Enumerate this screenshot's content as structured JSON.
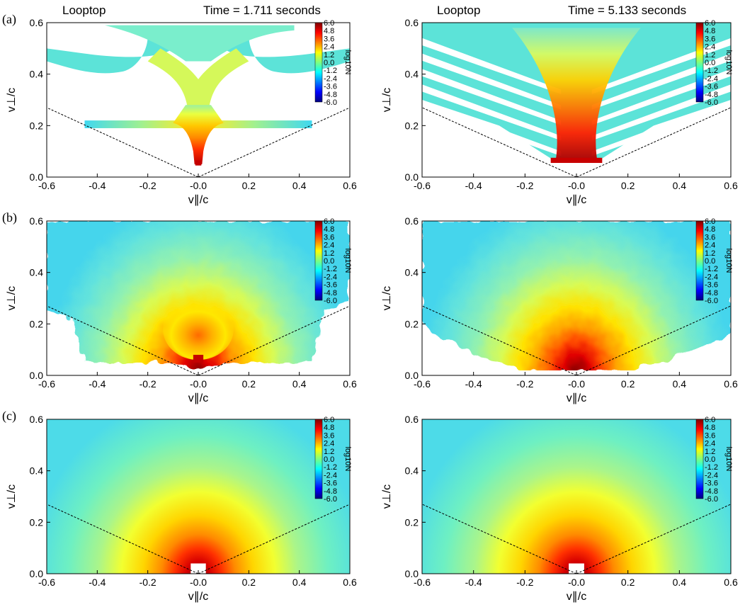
{
  "figure": {
    "header_left": "Looptop",
    "header_right": "Looptop",
    "time_left": "Time = 1.711 seconds",
    "time_right": "Time = 5.133 seconds",
    "row_labels": [
      "(a)",
      "(b)",
      "(c)"
    ],
    "xlabel": "v∥/c",
    "ylabel": "v⊥/c",
    "colorbar": {
      "title": "log10N",
      "ticks": [
        "6.0",
        "4.8",
        "3.6",
        "2.4",
        "1.2",
        "0.0",
        "-1.2",
        "-2.4",
        "-3.6",
        "-4.8",
        "-6.0"
      ],
      "range": [
        -6.0,
        6.0
      ],
      "colors": [
        "#00007f",
        "#0000ff",
        "#007fff",
        "#00ffff",
        "#7fff7f",
        "#ffff00",
        "#ff7f00",
        "#ff0000",
        "#7f0000"
      ]
    }
  },
  "chart_data": [
    {
      "type": "heatmap",
      "panel": "a-left",
      "row_label": "(a)",
      "title": "Time = 1.711 seconds",
      "header": "Looptop",
      "xlabel": "v∥/c",
      "ylabel": "v⊥/c",
      "xlim": [
        -0.6,
        0.6
      ],
      "ylim": [
        0.0,
        0.6
      ],
      "xticks": [
        "-0.6",
        "-0.4",
        "-0.2",
        "-0.0",
        "0.2",
        "0.4",
        "0.6"
      ],
      "yticks": [
        "0.0",
        "0.2",
        "0.4",
        "0.6"
      ],
      "loss_cone": {
        "vertex": [
          0.0,
          0.0
        ],
        "endpoints": [
          [
            -0.6,
            0.27
          ],
          [
            0.6,
            0.27
          ]
        ],
        "style": "dashed"
      },
      "colorbar_label": "log10N",
      "colorbar_range": [
        -6.0,
        6.0
      ],
      "description_features": "branching filaments; stem near v∥=0 peaking ~log10N 6 at v⊥≈0.05; horizontal band at v⊥≈0.21 spanning ±0.45; arms to v⊥≈0.45–0.6"
    },
    {
      "type": "heatmap",
      "panel": "a-right",
      "row_label": "",
      "title": "Time = 5.133 seconds",
      "header": "Looptop",
      "xlabel": "v∥/c",
      "ylabel": "v⊥/c",
      "xlim": [
        -0.6,
        0.6
      ],
      "ylim": [
        0.0,
        0.6
      ],
      "xticks": [
        "-0.6",
        "-0.4",
        "-0.2",
        "-0.0",
        "0.2",
        "0.4",
        "0.6"
      ],
      "yticks": [
        "0.0",
        "0.2",
        "0.4",
        "0.6"
      ],
      "loss_cone": {
        "vertex": [
          0.0,
          0.0
        ],
        "endpoints": [
          [
            -0.6,
            0.27
          ],
          [
            0.6,
            0.27
          ]
        ],
        "style": "dashed"
      },
      "colorbar_label": "log10N",
      "colorbar_range": [
        -6.0,
        6.0
      ]
    },
    {
      "type": "heatmap",
      "panel": "b-left",
      "row_label": "(b)",
      "xlabel": "v∥/c",
      "ylabel": "v⊥/c",
      "xlim": [
        -0.6,
        0.6
      ],
      "ylim": [
        0.0,
        0.6
      ],
      "xticks": [
        "-0.6",
        "-0.4",
        "-0.2",
        "-0.0",
        "0.2",
        "0.4",
        "0.6"
      ],
      "yticks": [
        "0.0",
        "0.2",
        "0.4",
        "0.6"
      ],
      "loss_cone": {
        "vertex": [
          0.0,
          0.0
        ],
        "endpoints": [
          [
            -0.6,
            0.27
          ],
          [
            0.6,
            0.27
          ]
        ],
        "style": "dashed"
      },
      "colorbar_label": "log10N",
      "colorbar_range": [
        -6.0,
        6.0
      ]
    },
    {
      "type": "heatmap",
      "panel": "b-right",
      "row_label": "",
      "xlabel": "v∥/c",
      "ylabel": "v⊥/c",
      "xlim": [
        -0.6,
        0.6
      ],
      "ylim": [
        0.0,
        0.6
      ],
      "xticks": [
        "-0.6",
        "-0.4",
        "-0.2",
        "-0.0",
        "0.2",
        "0.4",
        "0.6"
      ],
      "yticks": [
        "0.0",
        "0.2",
        "0.4",
        "0.6"
      ],
      "loss_cone": {
        "vertex": [
          0.0,
          0.0
        ],
        "endpoints": [
          [
            -0.6,
            0.27
          ],
          [
            0.6,
            0.27
          ]
        ],
        "style": "dashed"
      },
      "colorbar_label": "log10N",
      "colorbar_range": [
        -6.0,
        6.0
      ]
    },
    {
      "type": "heatmap",
      "panel": "c-left",
      "row_label": "(c)",
      "xlabel": "v∥/c",
      "ylabel": "v⊥/c",
      "xlim": [
        -0.6,
        0.6
      ],
      "ylim": [
        0.0,
        0.6
      ],
      "xticks": [
        "-0.6",
        "-0.4",
        "-0.2",
        "-0.0",
        "0.2",
        "0.4",
        "0.6"
      ],
      "yticks": [
        "0.0",
        "0.2",
        "0.4",
        "0.6"
      ],
      "loss_cone": {
        "vertex": [
          0.0,
          0.0
        ],
        "endpoints": [
          [
            -0.6,
            0.27
          ],
          [
            0.6,
            0.27
          ]
        ],
        "style": "dashed"
      },
      "colorbar_label": "log10N",
      "colorbar_range": [
        -6.0,
        6.0
      ]
    },
    {
      "type": "heatmap",
      "panel": "c-right",
      "row_label": "",
      "xlabel": "v∥/c",
      "ylabel": "v⊥/c",
      "xlim": [
        -0.6,
        0.6
      ],
      "ylim": [
        0.0,
        0.6
      ],
      "xticks": [
        "-0.6",
        "-0.4",
        "-0.2",
        "-0.0",
        "0.2",
        "0.4",
        "0.6"
      ],
      "yticks": [
        "0.0",
        "0.2",
        "0.4",
        "0.6"
      ],
      "loss_cone": {
        "vertex": [
          0.0,
          0.0
        ],
        "endpoints": [
          [
            -0.6,
            0.27
          ],
          [
            0.6,
            0.27
          ]
        ],
        "style": "dashed"
      },
      "colorbar_label": "log10N",
      "colorbar_range": [
        -6.0,
        6.0
      ]
    }
  ]
}
